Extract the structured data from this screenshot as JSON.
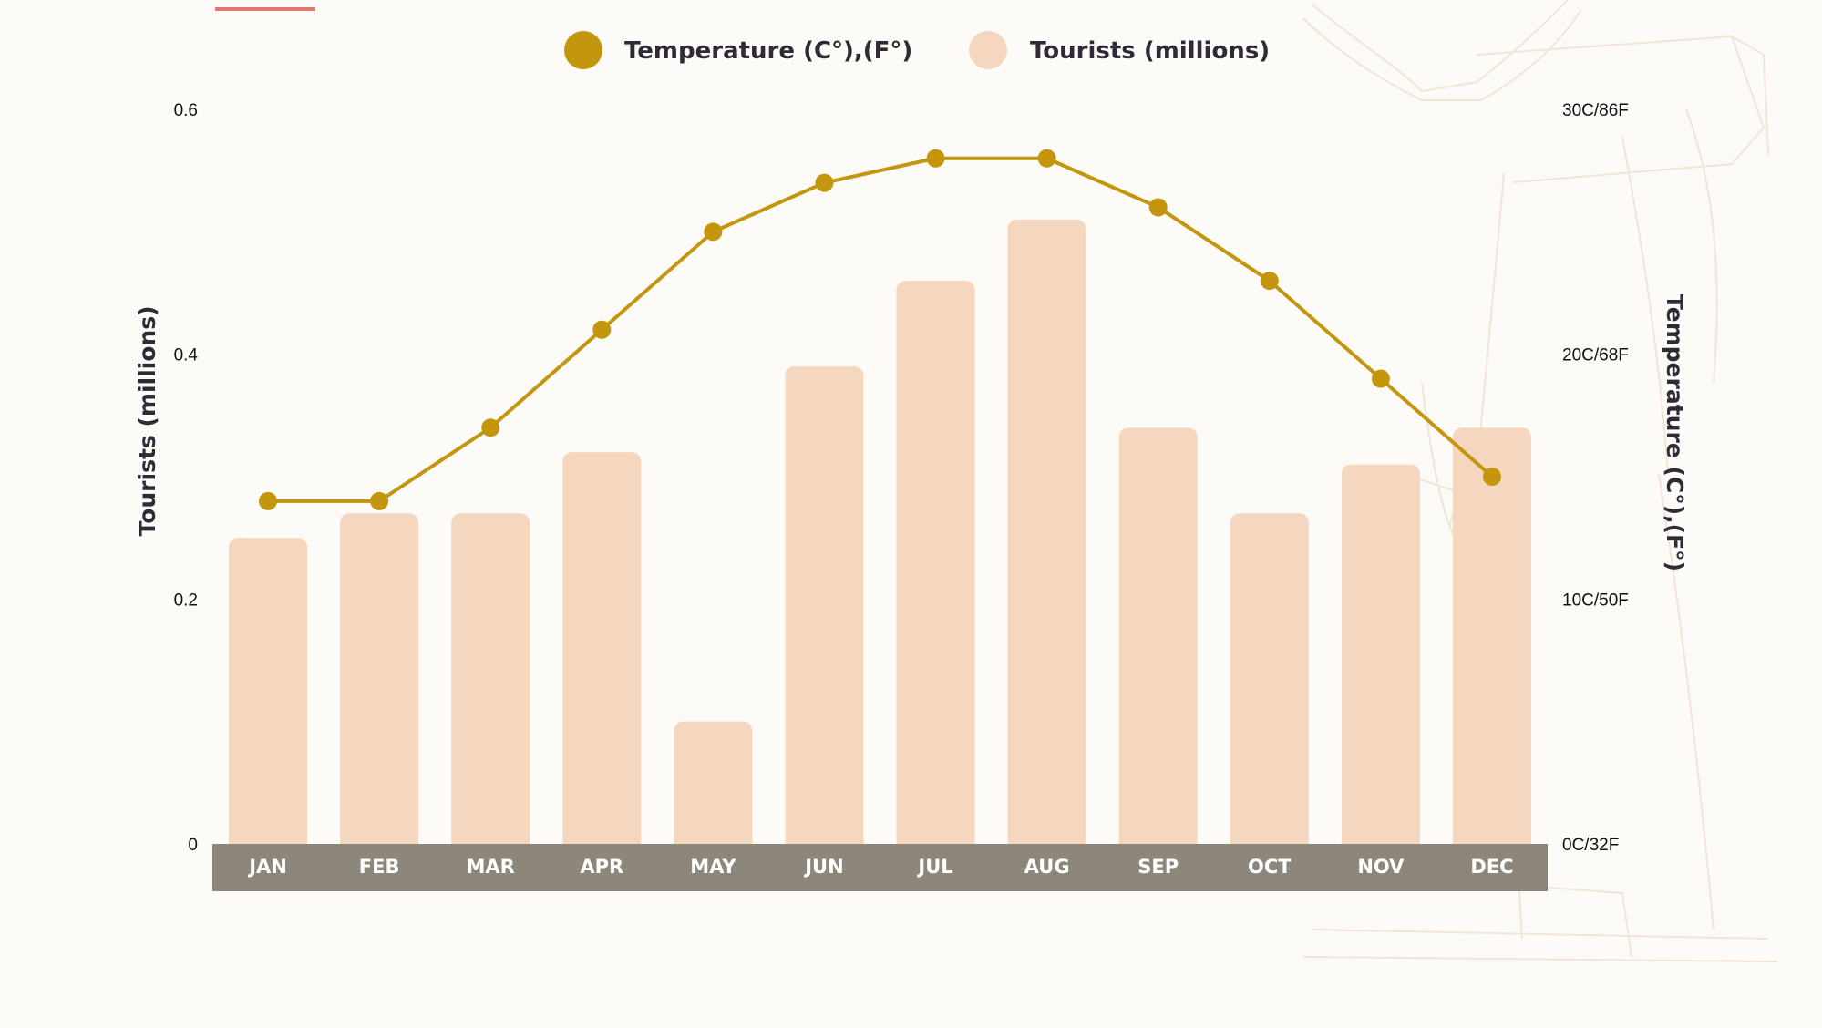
{
  "colors": {
    "background": "#fdfbf8",
    "bar": "#f5d7c0",
    "line": "#c3960d",
    "axis_band": "#8c877a",
    "accent_rule": "#e0786d",
    "text": "#2f2a35"
  },
  "chart_data": {
    "type": "bar",
    "combo": "bar + line (dual y-axis)",
    "categories": [
      "JAN",
      "FEB",
      "MAR",
      "APR",
      "MAY",
      "JUN",
      "JUL",
      "AUG",
      "SEP",
      "OCT",
      "NOV",
      "DEC"
    ],
    "series": [
      {
        "name": "Tourists (millions)",
        "type": "bar",
        "axis": "left",
        "values": [
          0.25,
          0.27,
          0.27,
          0.32,
          0.1,
          0.39,
          0.46,
          0.51,
          0.34,
          0.27,
          0.31,
          0.34
        ]
      },
      {
        "name": "Temperature (C°),(F°)",
        "type": "line",
        "axis": "right",
        "values": [
          14,
          14,
          17,
          21,
          25,
          27,
          28,
          28,
          26,
          23,
          19,
          15
        ]
      }
    ],
    "ylabel": "Tourists (millions)",
    "ylabel_right": "Temperature (C°),(F°)",
    "ylim": [
      0,
      0.6
    ],
    "ylim_right": [
      0,
      30
    ],
    "yticks": [
      "0",
      "0.2",
      "0.4",
      "0.6"
    ],
    "yticks_right": [
      "0C/32F",
      "10C/50F",
      "20C/68F",
      "30C/86F"
    ],
    "legend_position": "top-center",
    "grid": false
  }
}
